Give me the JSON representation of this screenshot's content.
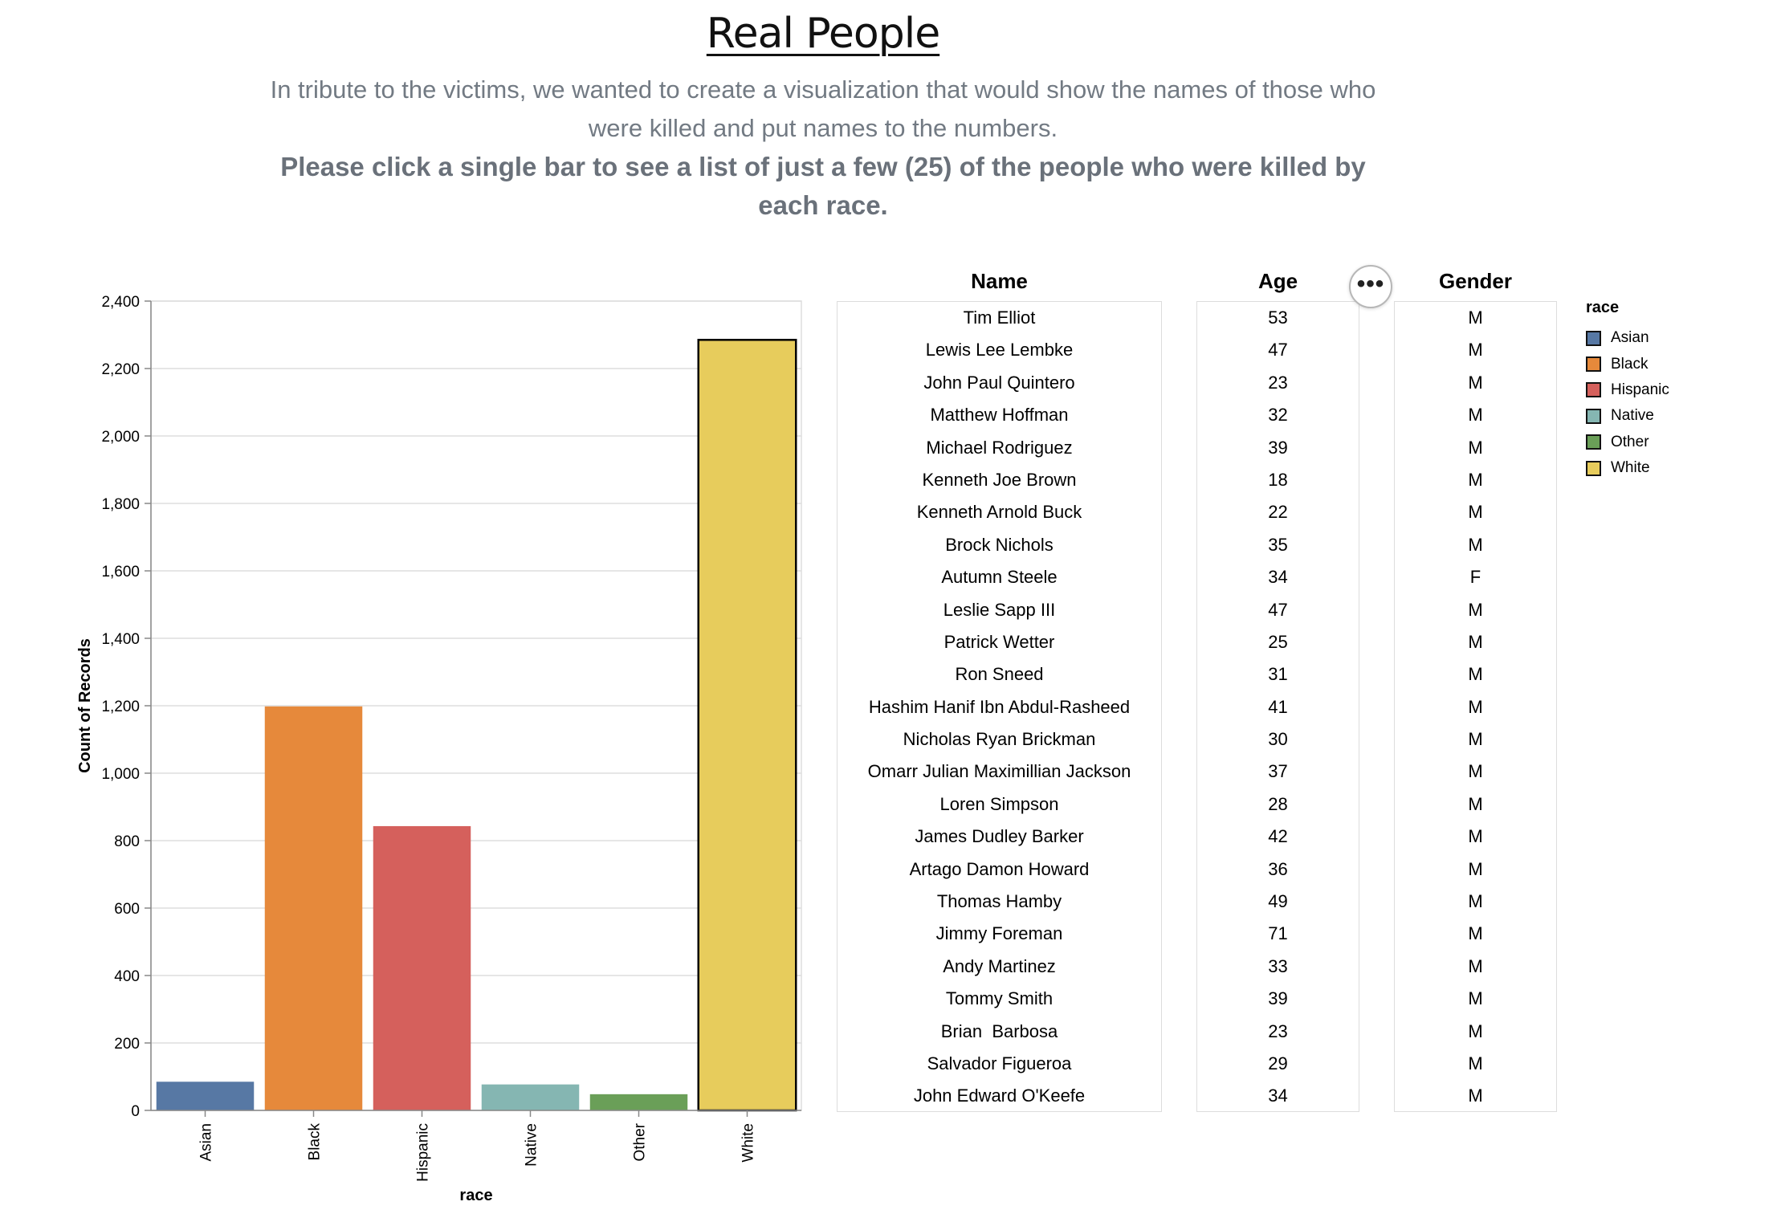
{
  "header": {
    "title": "Real People",
    "subtitle": "In tribute to the victims, we wanted to create a visualization that would show the names of those who were killed and put names to the numbers.",
    "instructions": "Please click a single bar to see a list of just a few (25) of the people who were killed by each race."
  },
  "chart_data": {
    "type": "bar",
    "categories": [
      "Asian",
      "Black",
      "Hispanic",
      "Native",
      "Other",
      "White"
    ],
    "values": [
      85,
      1198,
      843,
      77,
      48,
      2285
    ],
    "colors": [
      "#5778a4",
      "#e6893b",
      "#d5605c",
      "#85b6b2",
      "#6a9f58",
      "#e7cc5c"
    ],
    "xlabel": "race",
    "ylabel": "Count of Records",
    "ylim": [
      0,
      2400
    ],
    "yticks": [
      0,
      200,
      400,
      600,
      800,
      1000,
      1200,
      1400,
      1600,
      1800,
      2000,
      2200,
      2400
    ],
    "ytick_labels": [
      "0",
      "200",
      "400",
      "600",
      "800",
      "1,000",
      "1,200",
      "1,400",
      "1,600",
      "1,800",
      "2,000",
      "2,200",
      "2,400"
    ],
    "grid": true,
    "selected_category": "White",
    "legend": {
      "title": "race",
      "placement": "right",
      "entries": [
        "Asian",
        "Black",
        "Hispanic",
        "Native",
        "Other",
        "White"
      ]
    }
  },
  "table": {
    "headers": {
      "name": "Name",
      "age": "Age",
      "gender": "Gender"
    },
    "rows": [
      {
        "name": "Tim Elliot",
        "age": "53",
        "gender": "M"
      },
      {
        "name": "Lewis Lee Lembke",
        "age": "47",
        "gender": "M"
      },
      {
        "name": "John Paul Quintero",
        "age": "23",
        "gender": "M"
      },
      {
        "name": "Matthew Hoffman",
        "age": "32",
        "gender": "M"
      },
      {
        "name": "Michael Rodriguez",
        "age": "39",
        "gender": "M"
      },
      {
        "name": "Kenneth Joe Brown",
        "age": "18",
        "gender": "M"
      },
      {
        "name": "Kenneth Arnold Buck",
        "age": "22",
        "gender": "M"
      },
      {
        "name": "Brock Nichols",
        "age": "35",
        "gender": "M"
      },
      {
        "name": "Autumn Steele",
        "age": "34",
        "gender": "F"
      },
      {
        "name": "Leslie Sapp III",
        "age": "47",
        "gender": "M"
      },
      {
        "name": "Patrick Wetter",
        "age": "25",
        "gender": "M"
      },
      {
        "name": "Ron Sneed",
        "age": "31",
        "gender": "M"
      },
      {
        "name": "Hashim Hanif Ibn Abdul-Rasheed",
        "age": "41",
        "gender": "M"
      },
      {
        "name": "Nicholas Ryan Brickman",
        "age": "30",
        "gender": "M"
      },
      {
        "name": "Omarr Julian Maximillian Jackson",
        "age": "37",
        "gender": "M"
      },
      {
        "name": "Loren Simpson",
        "age": "28",
        "gender": "M"
      },
      {
        "name": "James Dudley Barker",
        "age": "42",
        "gender": "M"
      },
      {
        "name": "Artago Damon Howard",
        "age": "36",
        "gender": "M"
      },
      {
        "name": "Thomas Hamby",
        "age": "49",
        "gender": "M"
      },
      {
        "name": "Jimmy Foreman",
        "age": "71",
        "gender": "M"
      },
      {
        "name": "Andy Martinez",
        "age": "33",
        "gender": "M"
      },
      {
        "name": "Tommy Smith",
        "age": "39",
        "gender": "M"
      },
      {
        "name": "Brian  Barbosa",
        "age": "23",
        "gender": "M"
      },
      {
        "name": "Salvador Figueroa",
        "age": "29",
        "gender": "M"
      },
      {
        "name": "John Edward O'Keefe",
        "age": "34",
        "gender": "M"
      }
    ]
  },
  "menu_button": {
    "label": "•••",
    "icon": "ellipsis-icon"
  }
}
